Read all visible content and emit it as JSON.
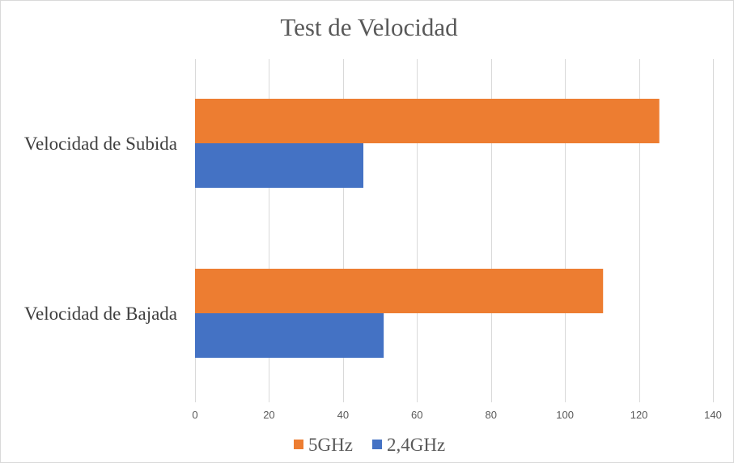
{
  "chart_data": {
    "type": "bar",
    "orientation": "horizontal",
    "title": "Test de Velocidad",
    "categories": [
      "Velocidad de Subida",
      "Velocidad de Bajada"
    ],
    "series": [
      {
        "name": "5GHz",
        "color": "#ED7D31",
        "values": [
          125.5,
          110.3
        ]
      },
      {
        "name": "2,4GHz",
        "color": "#4472C4",
        "values": [
          45.5,
          51
        ]
      }
    ],
    "xlim": [
      0,
      140
    ],
    "xticks": [
      0,
      20,
      40,
      60,
      80,
      100,
      120,
      140
    ],
    "grid": true,
    "legend_position": "bottom"
  }
}
